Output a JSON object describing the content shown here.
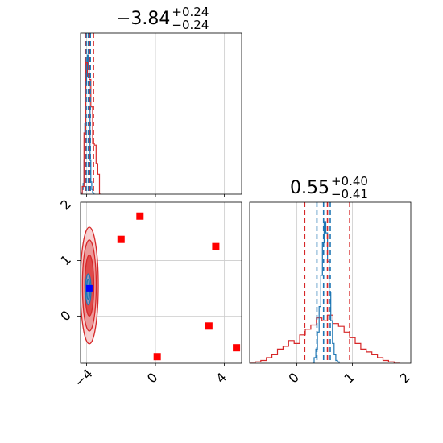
{
  "chart_data": {
    "type": "corner",
    "parameters": [
      {
        "title": {
          "median": "−3.84",
          "plus": "+0.24",
          "minus": "−0.24"
        },
        "range": [
          -4.35,
          5.0
        ],
        "ticks": [
          {
            "value": -4,
            "label": "−4"
          },
          {
            "value": 0,
            "label": "0"
          },
          {
            "value": 4,
            "label": "4"
          }
        ],
        "quantile_lines": {
          "red": [
            -4.08,
            -3.84,
            -3.6
          ],
          "blue": [
            -4.02,
            -3.9,
            -3.78
          ]
        },
        "hist_blue": {
          "x": [
            -4.35,
            -4.3,
            -4.25,
            -4.2,
            -4.15,
            -4.1,
            -4.05,
            -4.0,
            -3.95,
            -3.9,
            -3.85,
            -3.8,
            -3.75,
            -3.7,
            -3.65,
            -3.6,
            -3.55,
            -3.5
          ],
          "y": [
            0.0,
            0.01,
            0.03,
            0.07,
            0.22,
            0.46,
            0.72,
            0.86,
            0.91,
            0.82,
            0.55,
            0.22,
            0.08,
            0.03,
            0.01,
            0.0,
            0.0,
            0.0
          ]
        },
        "hist_red": {
          "x": [
            -4.35,
            -4.25,
            -4.15,
            -4.05,
            -3.95,
            -3.85,
            -3.75,
            -3.65,
            -3.55,
            -3.45,
            -3.35,
            -3.25,
            -3.15
          ],
          "y": [
            0.0,
            0.05,
            0.4,
            0.86,
            0.77,
            0.75,
            0.57,
            0.33,
            0.32,
            0.2,
            0.13,
            0.0,
            0.0
          ]
        }
      },
      {
        "title": {
          "median": "0.55",
          "plus": "+0.40",
          "minus": "−0.41"
        },
        "range": [
          -0.85,
          2.05
        ],
        "ticks": [
          {
            "value": 0,
            "label": "0"
          },
          {
            "value": 1,
            "label": "1"
          },
          {
            "value": 2,
            "label": "2"
          }
        ],
        "quantile_lines": {
          "red": [
            0.14,
            0.55,
            0.95
          ],
          "blue": [
            0.36,
            0.48,
            0.6
          ]
        },
        "hist_blue": {
          "x": [
            0.28,
            0.31,
            0.34,
            0.37,
            0.4,
            0.43,
            0.46,
            0.49,
            0.52,
            0.55,
            0.58,
            0.61,
            0.64,
            0.67,
            0.7,
            0.73,
            0.76
          ],
          "y": [
            0.0,
            0.04,
            0.1,
            0.22,
            0.4,
            0.62,
            0.85,
            1.0,
            0.92,
            0.72,
            0.5,
            0.3,
            0.14,
            0.06,
            0.02,
            0.01,
            0.0
          ]
        },
        "hist_red": {
          "x": [
            -0.85,
            -0.75,
            -0.65,
            -0.55,
            -0.45,
            -0.35,
            -0.25,
            -0.15,
            -0.05,
            0.05,
            0.15,
            0.25,
            0.35,
            0.45,
            0.55,
            0.65,
            0.75,
            0.85,
            0.95,
            1.05,
            1.15,
            1.25,
            1.35,
            1.45,
            1.55,
            1.65,
            1.75,
            1.85
          ],
          "y": [
            0.0,
            0.01,
            0.02,
            0.04,
            0.06,
            0.1,
            0.12,
            0.16,
            0.14,
            0.2,
            0.24,
            0.27,
            0.32,
            0.3,
            0.34,
            0.28,
            0.26,
            0.22,
            0.18,
            0.14,
            0.1,
            0.08,
            0.06,
            0.04,
            0.02,
            0.01,
            0.0,
            0.0
          ]
        }
      }
    ],
    "joint": {
      "blue_ellipse": {
        "cx": -3.9,
        "cy": 0.48,
        "rx": [
          0.1,
          0.16
        ],
        "ry": [
          0.18,
          0.28
        ]
      },
      "red_ellipse": {
        "cx": -3.84,
        "cy": 0.55,
        "rx": [
          0.26,
          0.4,
          0.52
        ],
        "ry": [
          0.55,
          0.82,
          1.05
        ]
      },
      "marker_blue": {
        "x": -3.84,
        "y": 0.5
      },
      "square_markers": [
        {
          "x": -2.0,
          "y": 1.38
        },
        {
          "x": -0.9,
          "y": 1.8
        },
        {
          "x": 0.1,
          "y": -0.73
        },
        {
          "x": 3.1,
          "y": -0.18
        },
        {
          "x": 3.5,
          "y": 1.25
        },
        {
          "x": 4.7,
          "y": -0.57
        }
      ]
    },
    "colors": {
      "blue": "#1f77b4",
      "red": "#d62728",
      "marker": "#ff0000",
      "grid": "#cccccc"
    },
    "grid": true
  }
}
